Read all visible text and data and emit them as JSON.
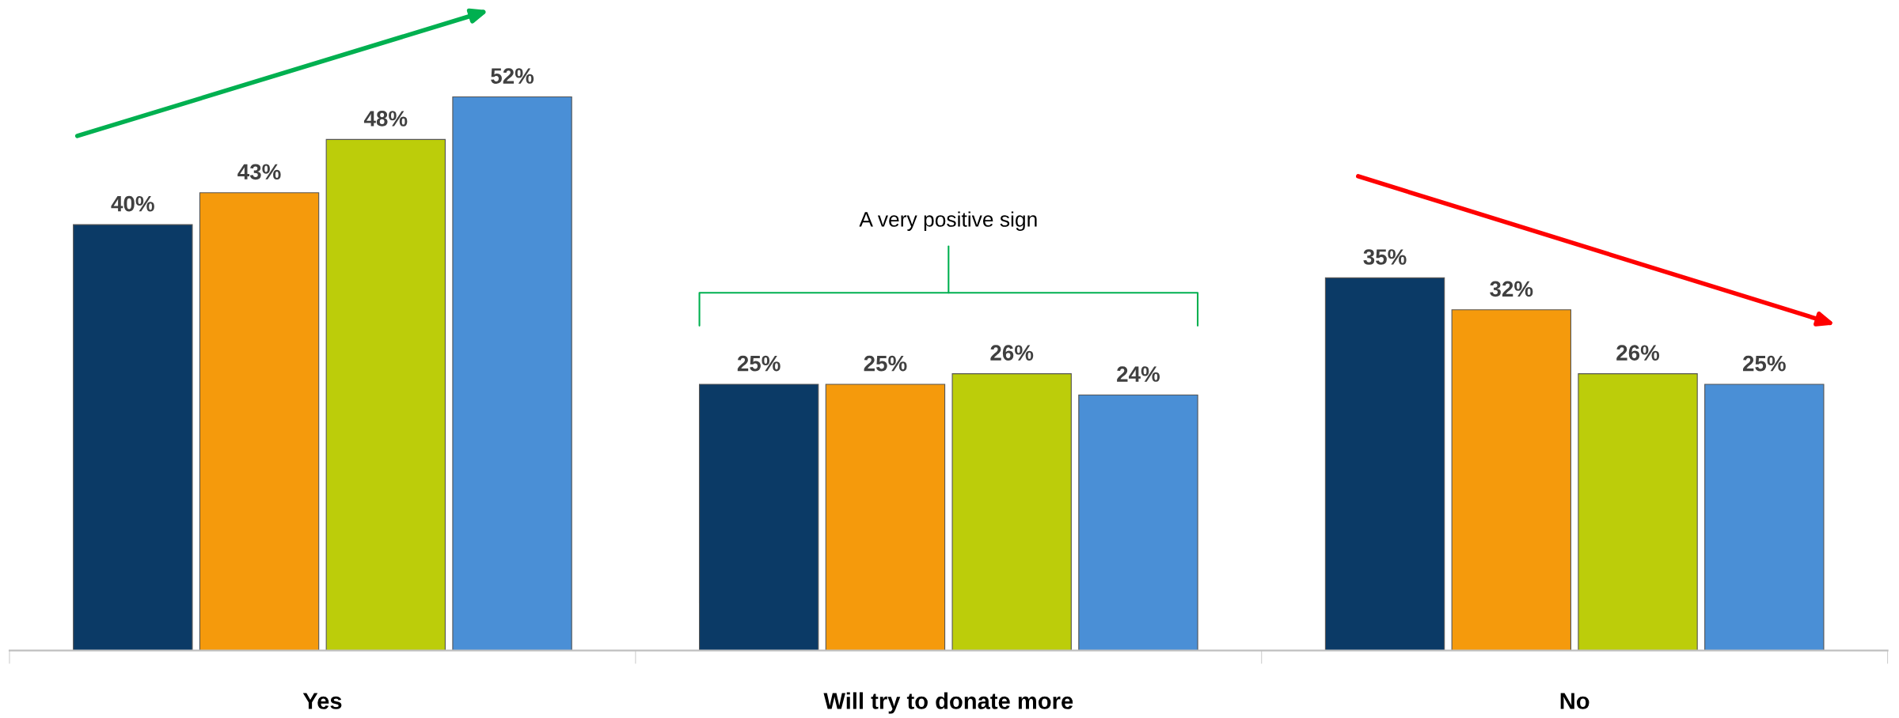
{
  "chart_data": {
    "type": "bar",
    "categories": [
      "Yes",
      "Will try to donate more",
      "No"
    ],
    "series": [
      {
        "color": "#0b3a66",
        "values": [
          40,
          25,
          35
        ],
        "value_labels": [
          "40%",
          "25%",
          "35%"
        ]
      },
      {
        "color": "#f59a0c",
        "values": [
          43,
          25,
          32
        ],
        "value_labels": [
          "43%",
          "25%",
          "32%"
        ]
      },
      {
        "color": "#bccd0a",
        "values": [
          48,
          26,
          26
        ],
        "value_labels": [
          "48%",
          "26%",
          "26%"
        ]
      },
      {
        "color": "#4a8fd6",
        "values": [
          52,
          24,
          25
        ],
        "value_labels": [
          "52%",
          "24%",
          "25%"
        ]
      }
    ],
    "tick_labels": "x",
    "annotations": [
      "A very positive sign"
    ]
  }
}
